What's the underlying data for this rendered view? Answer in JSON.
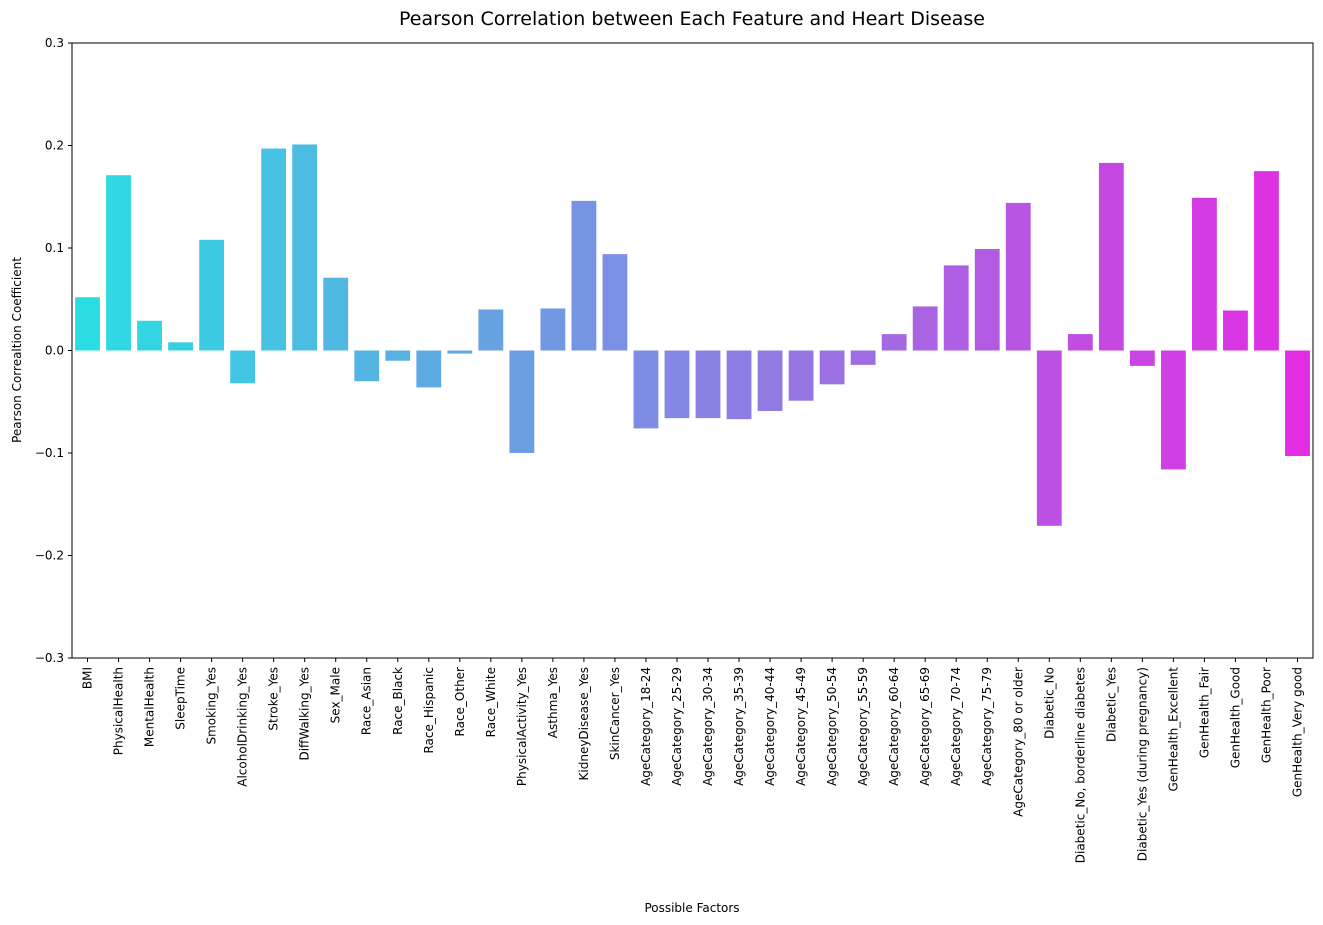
{
  "chart_data": {
    "type": "bar",
    "title": "Pearson Correlation between Each Feature and Heart Disease",
    "xlabel": "Possible Factors",
    "ylabel": "Pearson Correaltion Coefficient",
    "ylim": [
      -0.3,
      0.3
    ],
    "yticks": [
      -0.3,
      -0.2,
      -0.1,
      0.0,
      0.1,
      0.2,
      0.3
    ],
    "ytick_labels": [
      "−0.3",
      "−0.2",
      "−0.1",
      "0.0",
      "0.1",
      "0.2",
      "0.3"
    ],
    "grid": false,
    "legend": "none",
    "palette": [
      "#2adde3",
      "#e22de3"
    ],
    "categories": [
      "BMI",
      "PhysicalHealth",
      "MentalHealth",
      "SleepTime",
      "Smoking_Yes",
      "AlcoholDrinking_Yes",
      "Stroke_Yes",
      "DiffWalking_Yes",
      "Sex_Male",
      "Race_Asian",
      "Race_Black",
      "Race_Hispanic",
      "Race_Other",
      "Race_White",
      "PhysicalActivity_Yes",
      "Asthma_Yes",
      "KidneyDisease_Yes",
      "SkinCancer_Yes",
      "AgeCategory_18-24",
      "AgeCategory_25-29",
      "AgeCategory_30-34",
      "AgeCategory_35-39",
      "AgeCategory_40-44",
      "AgeCategory_45-49",
      "AgeCategory_50-54",
      "AgeCategory_55-59",
      "AgeCategory_60-64",
      "AgeCategory_65-69",
      "AgeCategory_70-74",
      "AgeCategory_75-79",
      "AgeCategory_80 or older",
      "Diabetic_No",
      "Diabetic_No, borderline diabetes",
      "Diabetic_Yes",
      "Diabetic_Yes (during pregnancy)",
      "GenHealth_Excellent",
      "GenHealth_Fair",
      "GenHealth_Good",
      "GenHealth_Poor",
      "GenHealth_Very good"
    ],
    "values": [
      0.052,
      0.171,
      0.029,
      0.008,
      0.108,
      -0.032,
      0.197,
      0.201,
      0.071,
      -0.03,
      -0.01,
      -0.036,
      -0.003,
      0.04,
      -0.1,
      0.041,
      0.146,
      0.094,
      -0.076,
      -0.066,
      -0.066,
      -0.067,
      -0.059,
      -0.049,
      -0.033,
      -0.014,
      0.016,
      0.043,
      0.083,
      0.099,
      0.144,
      -0.171,
      0.016,
      0.183,
      -0.015,
      -0.116,
      0.149,
      0.039,
      0.175,
      -0.103
    ]
  }
}
